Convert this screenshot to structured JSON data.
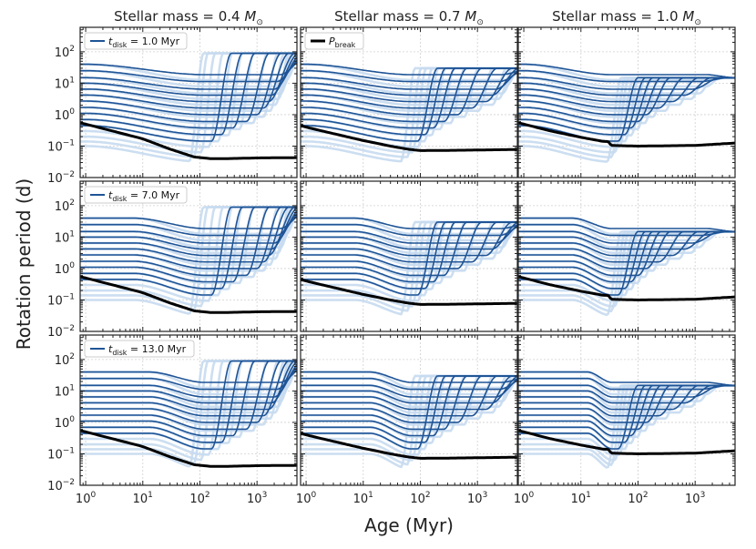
{
  "chart_data": {
    "type": "line",
    "layout": "3x3 grid of log-log panels",
    "column_titles": [
      {
        "prefix": "Stellar mass = ",
        "value": "0.4",
        "unit": "M",
        "unit_sub": "⊙"
      },
      {
        "prefix": "Stellar mass = ",
        "value": "0.7",
        "unit": "M",
        "unit_sub": "⊙"
      },
      {
        "prefix": "Stellar mass = ",
        "value": "1.0",
        "unit": "M",
        "unit_sub": "⊙"
      }
    ],
    "xlabel": "Age (Myr)",
    "ylabel": "Rotation period (d)",
    "xscale": "log",
    "yscale": "log",
    "xlim": [
      0.8,
      5000
    ],
    "ylim": [
      0.01,
      600
    ],
    "x_ticks": [
      {
        "base": "10",
        "exp": "0",
        "value": 1
      },
      {
        "base": "10",
        "exp": "1",
        "value": 10
      },
      {
        "base": "10",
        "exp": "2",
        "value": 100
      },
      {
        "base": "10",
        "exp": "3",
        "value": 1000
      }
    ],
    "y_ticks": [
      {
        "base": "10",
        "exp": "−2",
        "value": 0.01
      },
      {
        "base": "10",
        "exp": "−1",
        "value": 0.1
      },
      {
        "base": "10",
        "exp": "0",
        "value": 1
      },
      {
        "base": "10",
        "exp": "1",
        "value": 10
      },
      {
        "base": "10",
        "exp": "2",
        "value": 100
      }
    ],
    "rows": [
      {
        "t_disk_myr": 1.0,
        "legend": {
          "symbol": "t",
          "sub": "disk",
          "text": " = 1.0 Myr"
        }
      },
      {
        "t_disk_myr": 7.0,
        "legend": {
          "symbol": "t",
          "sub": "disk",
          "text": " = 7.0 Myr"
        }
      },
      {
        "t_disk_myr": 13.0,
        "legend": {
          "symbol": "t",
          "sub": "disk",
          "text": " = 13.0 Myr"
        }
      }
    ],
    "break_legend": {
      "symbol": "P",
      "sub": "break"
    },
    "initial_periods_d": [
      0.1,
      0.14,
      0.2,
      0.3,
      0.45,
      0.7,
      1.1,
      1.7,
      2.7,
      4.2,
      6.5,
      10,
      15,
      25,
      40
    ],
    "columns": [
      {
        "mass": 0.4,
        "P_final_d": 90,
        "x_min_age_myr": 120,
        "transition_start_myr": [
          50,
          60,
          80,
          110,
          160,
          240,
          380,
          650,
          1000,
          1300,
          1600,
          1800,
          2000,
          2200,
          2500
        ],
        "P_break_d": {
          "x": [
            0.8,
            1,
            3,
            10,
            30,
            80,
            150,
            300,
            1000,
            5000
          ],
          "y": [
            0.55,
            0.5,
            0.3,
            0.17,
            0.08,
            0.045,
            0.04,
            0.04,
            0.042,
            0.043
          ]
        }
      },
      {
        "mass": 0.7,
        "P_final_d": 30,
        "x_min_age_myr": 70,
        "transition_start_myr": [
          35,
          45,
          55,
          70,
          90,
          120,
          170,
          260,
          450,
          800,
          1400,
          1800,
          2100,
          2400,
          2600
        ],
        "P_break_d": {
          "x": [
            0.8,
            1,
            3,
            10,
            30,
            60,
            100,
            300,
            1000,
            5000
          ],
          "y": [
            0.45,
            0.4,
            0.25,
            0.15,
            0.1,
            0.08,
            0.072,
            0.073,
            0.075,
            0.078
          ]
        }
      },
      {
        "mass": 1.0,
        "P_final_d": 15,
        "x_min_age_myr": 35,
        "transition_start_myr": [
          22,
          26,
          30,
          36,
          45,
          58,
          75,
          100,
          140,
          230,
          400,
          650,
          900,
          1200,
          1500
        ],
        "P_break_d": {
          "x": [
            0.8,
            1,
            3,
            10,
            25,
            30,
            34,
            100,
            1000,
            5000
          ],
          "y": [
            0.55,
            0.5,
            0.3,
            0.19,
            0.14,
            0.14,
            0.105,
            0.1,
            0.105,
            0.125
          ]
        }
      }
    ],
    "colors": {
      "track": "#1f5496",
      "faint_track": "#c6daf0",
      "break": "#000000",
      "grid": "#d0d0d0",
      "frame": "#222222"
    }
  }
}
